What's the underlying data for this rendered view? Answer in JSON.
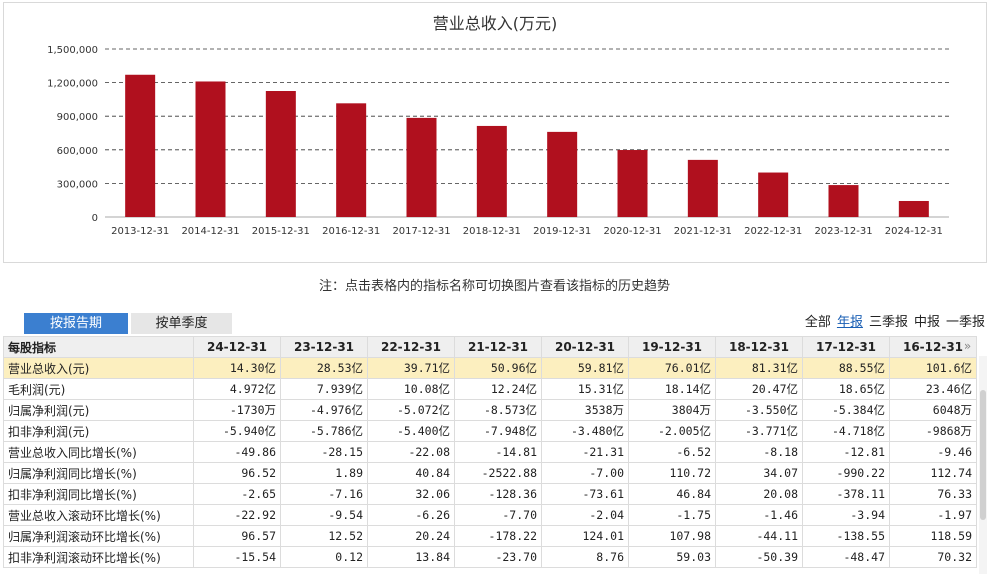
{
  "chart_data": {
    "type": "bar",
    "title": "营业总收入(万元)",
    "categories": [
      "2013-12-31",
      "2014-12-31",
      "2015-12-31",
      "2016-12-31",
      "2017-12-31",
      "2018-12-31",
      "2019-12-31",
      "2020-12-31",
      "2021-12-31",
      "2022-12-31",
      "2023-12-31",
      "2024-12-31"
    ],
    "values": [
      1270000,
      1210000,
      1125000,
      1015000,
      885000,
      813000,
      760000,
      598000,
      510000,
      397000,
      285000,
      143000
    ],
    "ylim": [
      0,
      1500000
    ],
    "yticks": [
      0,
      300000,
      600000,
      900000,
      1200000,
      1500000
    ],
    "ytick_labels": [
      "0",
      "300,000",
      "600,000",
      "900,000",
      "1,200,000",
      "1,500,000"
    ],
    "bar_color": "#b0101e",
    "grid": "dashed-horizontal",
    "xlabel": "",
    "ylabel": ""
  },
  "note": "注：点击表格内的指标名称可切换图片查看该指标的历史趋势",
  "tabs": {
    "active": "按报告期",
    "inactive": "按单季度"
  },
  "filters": [
    "全部",
    "年报",
    "三季报",
    "中报",
    "一季报"
  ],
  "filter_active_index": 1,
  "table": {
    "header_first": "每股指标",
    "columns": [
      "24-12-31",
      "23-12-31",
      "22-12-31",
      "21-12-31",
      "20-12-31",
      "19-12-31",
      "18-12-31",
      "17-12-31",
      "16-12-31"
    ],
    "rows": [
      {
        "name": "营业总收入(元)",
        "values": [
          "14.30亿",
          "28.53亿",
          "39.71亿",
          "50.96亿",
          "59.81亿",
          "76.01亿",
          "81.31亿",
          "88.55亿",
          "101.6亿"
        ]
      },
      {
        "name": "毛利润(元)",
        "values": [
          "4.972亿",
          "7.939亿",
          "10.08亿",
          "12.24亿",
          "15.31亿",
          "18.14亿",
          "20.47亿",
          "18.65亿",
          "23.46亿"
        ]
      },
      {
        "name": "归属净利润(元)",
        "values": [
          "-1730万",
          "-4.976亿",
          "-5.072亿",
          "-8.573亿",
          "3538万",
          "3804万",
          "-3.550亿",
          "-5.384亿",
          "6048万"
        ]
      },
      {
        "name": "扣非净利润(元)",
        "values": [
          "-5.940亿",
          "-5.786亿",
          "-5.400亿",
          "-7.948亿",
          "-3.480亿",
          "-2.005亿",
          "-3.771亿",
          "-4.718亿",
          "-9868万"
        ]
      },
      {
        "name": "营业总收入同比增长(%)",
        "values": [
          "-49.86",
          "-28.15",
          "-22.08",
          "-14.81",
          "-21.31",
          "-6.52",
          "-8.18",
          "-12.81",
          "-9.46"
        ]
      },
      {
        "name": "归属净利润同比增长(%)",
        "values": [
          "96.52",
          "1.89",
          "40.84",
          "-2522.88",
          "-7.00",
          "110.72",
          "34.07",
          "-990.22",
          "112.74"
        ]
      },
      {
        "name": "扣非净利润同比增长(%)",
        "values": [
          "-2.65",
          "-7.16",
          "32.06",
          "-128.36",
          "-73.61",
          "46.84",
          "20.08",
          "-378.11",
          "76.33"
        ]
      },
      {
        "name": "营业总收入滚动环比增长(%)",
        "values": [
          "-22.92",
          "-9.54",
          "-6.26",
          "-7.70",
          "-2.04",
          "-1.75",
          "-1.46",
          "-3.94",
          "-1.97"
        ]
      },
      {
        "name": "归属净利润滚动环比增长(%)",
        "values": [
          "96.57",
          "12.52",
          "20.24",
          "-178.22",
          "124.01",
          "107.98",
          "-44.11",
          "-138.55",
          "118.59"
        ]
      },
      {
        "name": "扣非净利润滚动环比增长(%)",
        "values": [
          "-15.54",
          "0.12",
          "13.84",
          "-23.70",
          "8.76",
          "59.03",
          "-50.39",
          "-48.47",
          "70.32"
        ]
      }
    ]
  }
}
